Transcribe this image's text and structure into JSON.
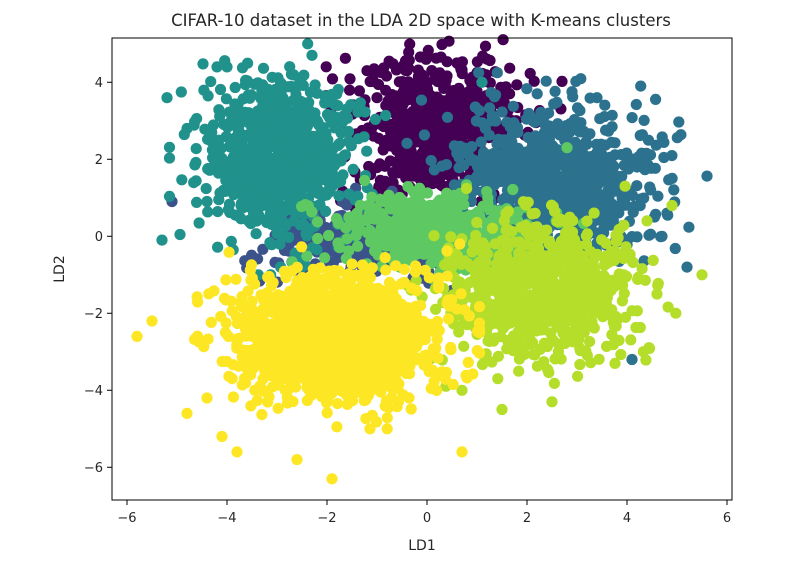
{
  "chart_data": {
    "type": "scatter",
    "title": "CIFAR-10 dataset in the LDA 2D space with K-means clusters",
    "xlabel": "LD1",
    "ylabel": "LD2",
    "xlim": [
      -6.3,
      6.1
    ],
    "ylim": [
      -6.85,
      5.15
    ],
    "xticks": [
      -6,
      -4,
      -2,
      0,
      2,
      4,
      6
    ],
    "xtick_labels": [
      "−6",
      "−4",
      "−2",
      "0",
      "2",
      "4",
      "6"
    ],
    "yticks": [
      -6,
      -4,
      -2,
      0,
      2,
      4
    ],
    "ytick_labels": [
      "−6",
      "−4",
      "−2",
      "0",
      "2",
      "4"
    ],
    "grid": false,
    "legend": "none",
    "colormap": "viridis",
    "series": [
      {
        "cluster": 0,
        "color": "#440154",
        "center": [
          0.2,
          2.8
        ],
        "spread": [
          0.85,
          0.95
        ],
        "count": 650,
        "x": [
          -0.4,
          0.0,
          0.6,
          1.2,
          -1.0,
          0.2,
          0.9
        ],
        "y": [
          4.3,
          4.7,
          4.5,
          4.6,
          3.6,
          2.2,
          1.9
        ]
      },
      {
        "cluster": 1,
        "color": "#3b528b",
        "center": [
          -1.2,
          -0.1
        ],
        "spread": [
          1.0,
          0.45
        ],
        "count": 350,
        "x": [
          -5.1,
          -2.4,
          -1.0,
          -0.6
        ],
        "y": [
          0.9,
          0.2,
          -0.3,
          0.5
        ]
      },
      {
        "cluster": 2,
        "color": "#2c728e",
        "center": [
          2.6,
          1.4
        ],
        "spread": [
          1.0,
          0.95
        ],
        "count": 850,
        "x": [
          4.2,
          4.8,
          5.2,
          4.1,
          3.4,
          4.7,
          1.3
        ],
        "y": [
          1.8,
          0.6,
          -0.8,
          -3.2,
          3.6,
          0.0,
          3.0
        ]
      },
      {
        "cluster": 3,
        "color": "#21918c",
        "center": [
          -2.9,
          2.0
        ],
        "spread": [
          0.75,
          1.0
        ],
        "count": 850,
        "x": [
          -5.2,
          -5.3,
          -4.2,
          -4.8,
          -4.0,
          -2.3,
          1.1
        ],
        "y": [
          3.6,
          -0.1,
          4.4,
          2.8,
          4.4,
          4.7,
          4.0
        ]
      },
      {
        "cluster": 4,
        "color": "#5ec962",
        "center": [
          0.3,
          0.1
        ],
        "spread": [
          1.0,
          0.45
        ],
        "count": 500,
        "x": [
          -1.4,
          -0.6,
          1.0,
          2.8
        ],
        "y": [
          0.6,
          0.2,
          -0.8,
          2.3
        ]
      },
      {
        "cluster": 5,
        "color": "#b5de2b",
        "center": [
          2.3,
          -1.4
        ],
        "spread": [
          1.0,
          0.9
        ],
        "count": 800,
        "x": [
          5.5,
          4.9,
          4.6,
          1.5,
          0.7,
          2.5,
          4.4
        ],
        "y": [
          -1.0,
          0.8,
          -1.5,
          -4.5,
          -4.0,
          -4.3,
          0.4
        ]
      },
      {
        "cluster": 6,
        "color": "#fde725",
        "center": [
          -1.8,
          -2.6
        ],
        "spread": [
          0.95,
          0.8
        ],
        "count": 1500,
        "x": [
          -5.8,
          -5.5,
          -4.8,
          -4.4,
          -4.1,
          -3.8,
          -2.6,
          -1.9,
          0.7,
          -2.7
        ],
        "y": [
          -2.6,
          -2.2,
          -4.6,
          -4.2,
          -5.2,
          -5.6,
          -5.8,
          -6.3,
          -5.6,
          -0.9
        ]
      }
    ]
  }
}
